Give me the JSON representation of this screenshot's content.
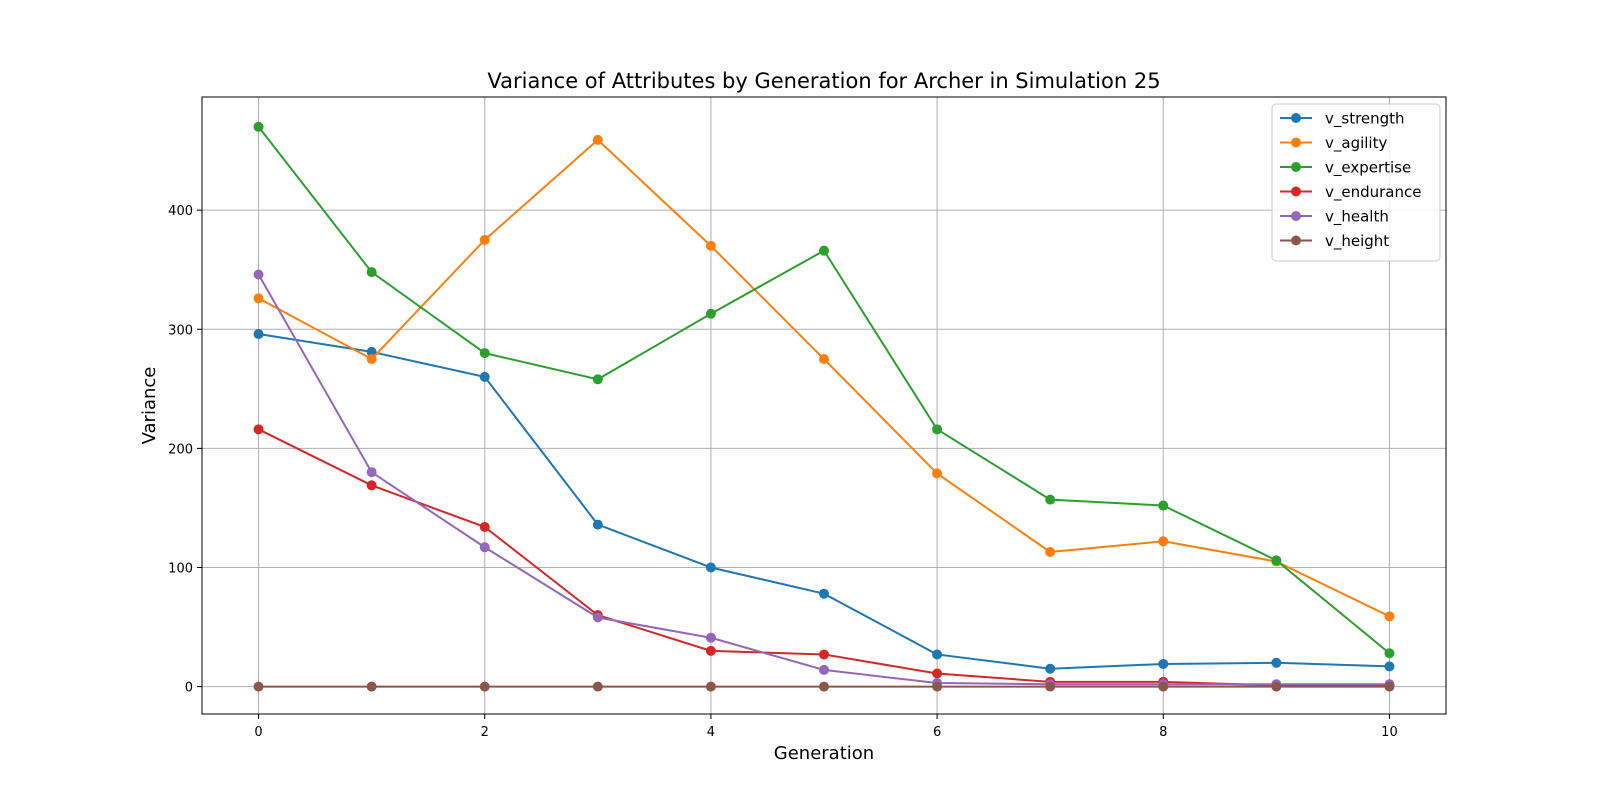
{
  "chart_data": {
    "type": "line",
    "title": "Variance of Attributes by Generation for Archer in Simulation 25",
    "xlabel": "Generation",
    "ylabel": "Variance",
    "x": [
      0,
      1,
      2,
      3,
      4,
      5,
      6,
      7,
      8,
      9,
      10
    ],
    "xlim": [
      -0.5,
      10.5
    ],
    "ylim": [
      -23,
      495
    ],
    "xticks": [
      0,
      2,
      4,
      6,
      8,
      10
    ],
    "yticks": [
      0,
      100,
      200,
      300,
      400
    ],
    "grid": true,
    "legend_position": "top-right",
    "series": [
      {
        "name": "v_strength",
        "color": "#1f77b4",
        "values": [
          296,
          281,
          260,
          136,
          100,
          78,
          27,
          15,
          19,
          20,
          17
        ]
      },
      {
        "name": "v_agility",
        "color": "#ff7f0e",
        "values": [
          326,
          275,
          375,
          459,
          370,
          275,
          179,
          113,
          122,
          105,
          59
        ]
      },
      {
        "name": "v_expertise",
        "color": "#2ca02c",
        "values": [
          470,
          348,
          280,
          258,
          313,
          366,
          216,
          157,
          152,
          106,
          28
        ]
      },
      {
        "name": "v_endurance",
        "color": "#d62728",
        "values": [
          216,
          169,
          134,
          60,
          30,
          27,
          11,
          4,
          4,
          1,
          1
        ]
      },
      {
        "name": "v_health",
        "color": "#9467bd",
        "values": [
          346,
          180,
          117,
          58,
          41,
          14,
          3,
          2,
          2,
          2,
          2
        ]
      },
      {
        "name": "v_height",
        "color": "#8c564b",
        "values": [
          0,
          0,
          0,
          0,
          0,
          0,
          0,
          0,
          0,
          0,
          0
        ]
      }
    ]
  }
}
